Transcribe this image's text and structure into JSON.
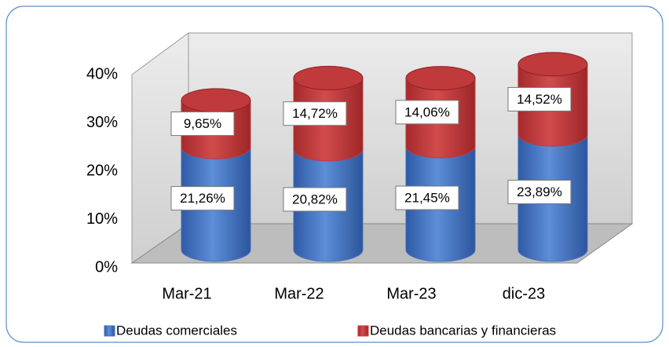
{
  "chart_data": {
    "type": "bar",
    "stacked": true,
    "categories": [
      "Mar-21",
      "Mar-22",
      "Mar-23",
      "dic-23"
    ],
    "series": [
      {
        "name": "Deudas comerciales",
        "color": "#3f6fbf",
        "values": [
          21.26,
          20.82,
          21.45,
          23.89
        ],
        "value_labels": [
          "21,26%",
          "20,82%",
          "21,45%",
          "23,89%"
        ]
      },
      {
        "name": "Deudas bancarias y financieras",
        "color": "#c0393b",
        "values": [
          9.65,
          14.72,
          14.06,
          14.52
        ],
        "value_labels": [
          "9,65%",
          "14,72%",
          "14,06%",
          "14,52%"
        ]
      }
    ],
    "ylim": [
      0,
      40
    ],
    "yticks": [
      {
        "value": 0,
        "label": "0%"
      },
      {
        "value": 10,
        "label": "10%"
      },
      {
        "value": 20,
        "label": "20%"
      },
      {
        "value": 30,
        "label": "30%"
      },
      {
        "value": 40,
        "label": "40%"
      }
    ],
    "legend": "bottom"
  }
}
